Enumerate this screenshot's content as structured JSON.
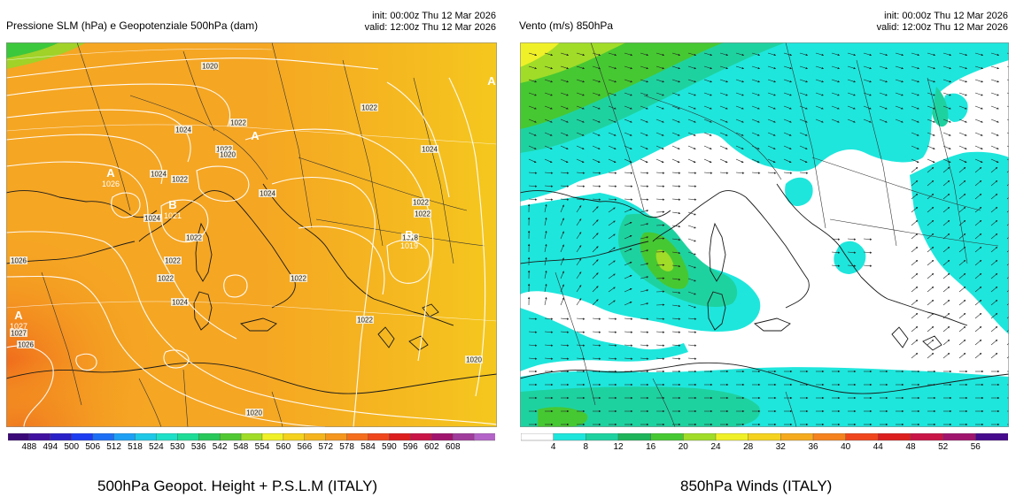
{
  "left_panel": {
    "title": "Pressione SLM (hPa) e Geopotenziale 500hPa (dam)",
    "init": "init: 00:00z Thu 12 Mar 2026",
    "valid": "valid: 12:00z Thu 12 Mar 2026",
    "caption": "500hPa Geopot. Height + P.S.L.M (ITALY)",
    "colorbar": {
      "ticks": [
        "488",
        "494",
        "500",
        "506",
        "512",
        "518",
        "524",
        "530",
        "536",
        "542",
        "548",
        "554",
        "560",
        "566",
        "572",
        "578",
        "584",
        "590",
        "596",
        "602",
        "608"
      ],
      "colors": [
        "#3c0a78",
        "#4010a0",
        "#2a20c8",
        "#1e3cf0",
        "#1e6ef5",
        "#1ea0f5",
        "#1ec8e6",
        "#1ee0c8",
        "#1edc96",
        "#28c85a",
        "#50c832",
        "#a0dc28",
        "#f0f028",
        "#f5d21e",
        "#f5b41e",
        "#f5961e",
        "#f56e1e",
        "#f0461e",
        "#dc1e1e",
        "#c81446",
        "#a0146e",
        "#a03c9c",
        "#b464c8"
      ],
      "value_range": [
        482,
        614
      ]
    },
    "isobar_labels": [
      "1020",
      "1022",
      "1024",
      "1024",
      "1022",
      "1022",
      "1024",
      "1022",
      "1022",
      "1024",
      "1022",
      "1020",
      "1022",
      "1022",
      "1022",
      "1024",
      "1022",
      "1022",
      "1020",
      "1024",
      "1026",
      "1020",
      "1026",
      "1018",
      "1027"
    ],
    "pressure_centers": [
      {
        "letter": "A",
        "value": "1026"
      },
      {
        "letter": "B",
        "value": "1021"
      },
      {
        "letter": "A",
        "value": "1027"
      },
      {
        "letter": "B",
        "value": "1019"
      },
      {
        "letter": "A",
        "value": ""
      },
      {
        "letter": "A",
        "value": ""
      }
    ]
  },
  "right_panel": {
    "title": "Vento (m/s) 850hPa",
    "init": "init: 00:00z Thu 12 Mar 2026",
    "valid": "valid: 12:00z Thu 12 Mar 2026",
    "caption": "850hPa Winds (ITALY)",
    "colorbar": {
      "ticks": [
        "4",
        "8",
        "12",
        "16",
        "20",
        "24",
        "28",
        "32",
        "36",
        "40",
        "44",
        "48",
        "52",
        "56"
      ],
      "colors": [
        "#ffffff",
        "#1ee6dc",
        "#1ed2a0",
        "#1eb45a",
        "#46c832",
        "#a0dc28",
        "#f0f028",
        "#f5d21e",
        "#f5aa1e",
        "#f5821e",
        "#f0461e",
        "#dc1e1e",
        "#c81446",
        "#a0146e",
        "#460a8c"
      ],
      "value_range": [
        0,
        60
      ]
    }
  },
  "colors": {
    "height_base": "#f5a623",
    "height_high": "#f07020",
    "height_low": "#f5c81e",
    "wind_calm": "#ffffff",
    "wind_light": "#1ee6dc",
    "wind_moderate": "#1ed2a0",
    "wind_strong": "#46c832",
    "coastline": "#1a1a1a",
    "isobar": "#ffffff"
  }
}
